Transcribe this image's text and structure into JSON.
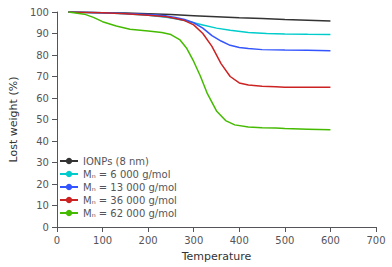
{
  "chart_data": {
    "type": "line",
    "xlabel": "Temperature",
    "ylabel": "Lost weight (%)",
    "xlim": [
      0,
      700
    ],
    "ylim": [
      0,
      100
    ],
    "xticks": [
      0,
      100,
      200,
      300,
      400,
      500,
      600,
      700
    ],
    "yticks": [
      0,
      10,
      20,
      30,
      40,
      50,
      60,
      70,
      80,
      90,
      100
    ],
    "grid": false,
    "legend": "lower left",
    "series": [
      {
        "name": "IONPs (8 nm)",
        "color": "#333333",
        "x": [
          25,
          100,
          150,
          200,
          250,
          300,
          350,
          400,
          450,
          500,
          550,
          600
        ],
        "values": [
          100,
          99.7,
          99.5,
          99.2,
          98.8,
          98.3,
          97.8,
          97.3,
          97.0,
          96.5,
          96.2,
          95.8
        ]
      },
      {
        "name": "Mₙ = 6 000 g/mol",
        "color": "#00CCCC",
        "x": [
          25,
          100,
          150,
          200,
          240,
          260,
          280,
          300,
          320,
          350,
          380,
          420,
          460,
          500,
          550,
          600
        ],
        "values": [
          100,
          99.6,
          99.2,
          98.5,
          97.5,
          96.8,
          96.0,
          95.0,
          94.0,
          92.5,
          91.5,
          90.5,
          90.0,
          89.8,
          89.6,
          89.5
        ]
      },
      {
        "name": "Mₙ = 13 000 g/mol",
        "color": "#3355FF",
        "x": [
          25,
          100,
          150,
          200,
          240,
          260,
          280,
          300,
          320,
          340,
          360,
          380,
          400,
          420,
          450,
          500,
          550,
          600
        ],
        "values": [
          100,
          99.7,
          99.3,
          98.8,
          98.2,
          97.5,
          96.5,
          95.0,
          92.5,
          89.0,
          86.5,
          84.5,
          83.5,
          83.0,
          82.5,
          82.3,
          82.2,
          82.0
        ]
      },
      {
        "name": "Mₙ = 36 000 g/mol",
        "color": "#CC2222",
        "x": [
          25,
          100,
          150,
          200,
          240,
          260,
          280,
          300,
          320,
          340,
          360,
          380,
          400,
          420,
          450,
          480,
          500,
          550,
          600
        ],
        "values": [
          100,
          99.6,
          99.2,
          98.5,
          97.8,
          97.0,
          96.0,
          94.0,
          90.0,
          84.0,
          76.0,
          70.0,
          67.0,
          66.0,
          65.5,
          65.2,
          65.0,
          65.0,
          65.0
        ]
      },
      {
        "name": "Mₙ = 62 000 g/mol",
        "color": "#44BB00",
        "x": [
          25,
          60,
          80,
          100,
          130,
          160,
          200,
          230,
          250,
          270,
          285,
          300,
          315,
          330,
          350,
          370,
          390,
          420,
          450,
          480,
          500,
          550,
          600
        ],
        "values": [
          100,
          99.0,
          97.5,
          95.5,
          93.5,
          92.0,
          91.2,
          90.5,
          89.5,
          87.0,
          83.0,
          77.0,
          70.0,
          62.0,
          54.0,
          49.5,
          47.5,
          46.5,
          46.2,
          46.0,
          45.8,
          45.5,
          45.2
        ]
      }
    ]
  }
}
